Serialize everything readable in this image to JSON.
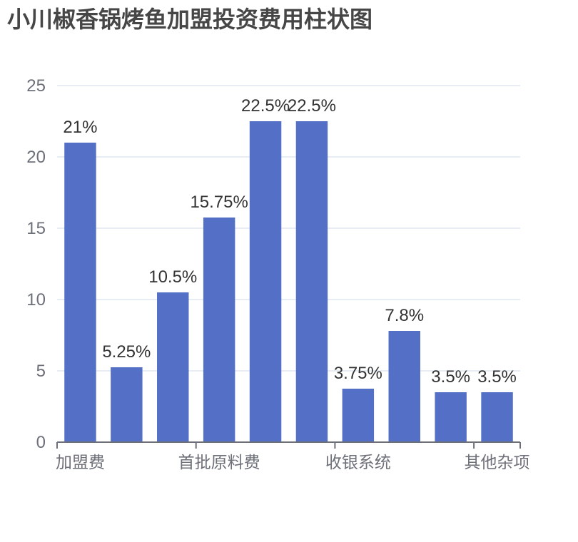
{
  "title": "小川椒香锅烤鱼加盟投资费用柱状图",
  "colors": {
    "bar": "#5470C6",
    "grid": "#E0E6F1",
    "axis": "#6E7079",
    "axis_label": "#6E7079",
    "value_label": "#333333",
    "title": "#464646"
  },
  "chart_data": {
    "type": "bar",
    "title": "小川椒香锅烤鱼加盟投资费用柱状图",
    "xlabel": "",
    "ylabel": "",
    "ylim": [
      0,
      25
    ],
    "y_interval": 5,
    "y_ticks": [
      0,
      5,
      10,
      15,
      20,
      25
    ],
    "grid": true,
    "legend": null,
    "categories": [
      "加盟费",
      "",
      "",
      "首批原料费",
      "",
      "",
      "收银系统",
      "",
      "",
      "其他杂项"
    ],
    "visible_x_labels": [
      {
        "index": 0,
        "label": "加盟费"
      },
      {
        "index": 3,
        "label": "首批原料费"
      },
      {
        "index": 6,
        "label": "收银系统"
      },
      {
        "index": 9,
        "label": "其他杂项"
      }
    ],
    "values": [
      21,
      5.25,
      10.5,
      15.75,
      22.5,
      22.5,
      3.75,
      7.8,
      3.5,
      3.5
    ],
    "value_labels": [
      "21%",
      "5.25%",
      "10.5%",
      "15.75%",
      "22.5%",
      "22.5%",
      "3.75%",
      "7.8%",
      "3.5%",
      "3.5%"
    ]
  }
}
